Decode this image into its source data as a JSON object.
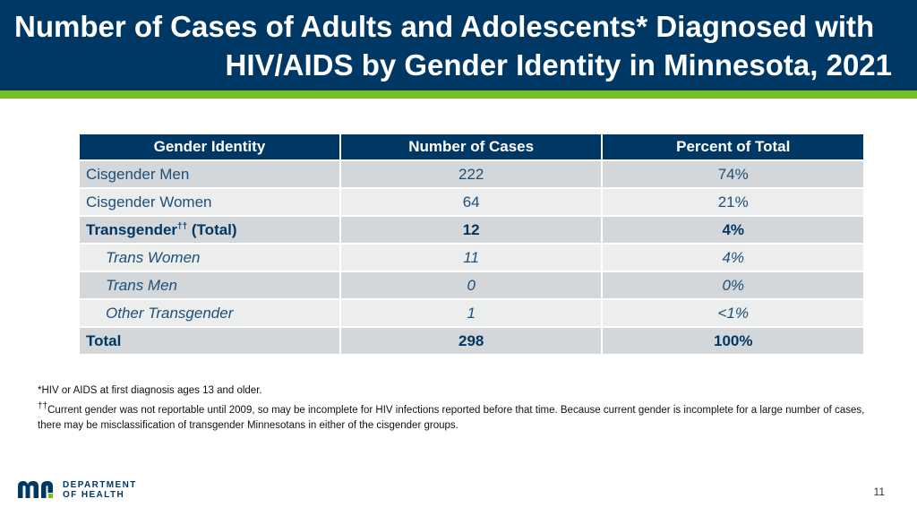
{
  "header": {
    "title_line1": "Number of Cases of Adults and Adolescents* Diagnosed with",
    "title_line2": "HIV/AIDS by Gender Identity in Minnesota, 2021"
  },
  "table": {
    "headers": [
      "Gender Identity",
      "Number of Cases",
      "Percent of Total"
    ],
    "rows": [
      {
        "label": "Cisgender Men",
        "cases": "222",
        "percent": "74%"
      },
      {
        "label": "Cisgender Women",
        "cases": "64",
        "percent": "21%"
      },
      {
        "label": "Transgender",
        "label_sup": "††",
        "label_suffix": " (Total)",
        "cases": "12",
        "percent": "4%"
      },
      {
        "label": "Trans Women",
        "cases": "11",
        "percent": "4%"
      },
      {
        "label": "Trans Men",
        "cases": "0",
        "percent": "0%"
      },
      {
        "label": "Other Transgender",
        "cases": "1",
        "percent": "<1%"
      },
      {
        "label": "Total",
        "cases": "298",
        "percent": "100%"
      }
    ]
  },
  "footnotes": {
    "note1": "*HIV or AIDS at first diagnosis ages 13 and older.",
    "note2_sup": "††",
    "note2": "Current gender was not reportable until 2009, so may be incomplete for HIV infections reported before that time. Because current gender is incomplete for a large number of cases, there may be misclassification of transgender Minnesotans in either of the cisgender groups."
  },
  "logo": {
    "line1": "DEPARTMENT",
    "line2": "OF HEALTH",
    "colors": {
      "navy": "#003865",
      "green": "#78be21"
    }
  },
  "page_number": "11"
}
